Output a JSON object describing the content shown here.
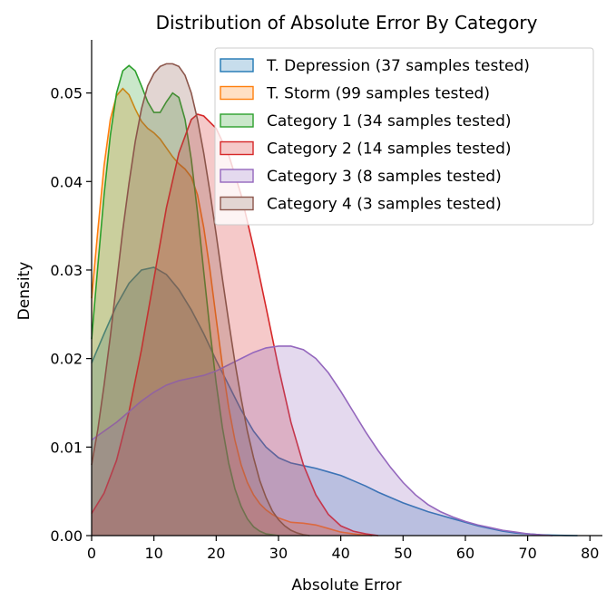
{
  "chart_data": {
    "type": "area",
    "title": "Distribution of Absolute Error By Category",
    "xlabel": "Absolute Error",
    "ylabel": "Density",
    "xlim": [
      0,
      82
    ],
    "ylim": [
      0,
      0.056
    ],
    "xticks": [
      0,
      10,
      20,
      30,
      40,
      50,
      60,
      70,
      80
    ],
    "yticks": [
      0.0,
      0.01,
      0.02,
      0.03,
      0.04,
      0.05
    ],
    "ytick_labels": [
      "0.00",
      "0.01",
      "0.02",
      "0.03",
      "0.04",
      "0.05"
    ],
    "grid": false,
    "legend_position": "top-right",
    "series": [
      {
        "name": "T. Depression (37 samples tested)",
        "color": "#1f77b4",
        "points": [
          [
            0,
            0.0195
          ],
          [
            2,
            0.0228
          ],
          [
            4,
            0.026
          ],
          [
            6,
            0.0285
          ],
          [
            8,
            0.03
          ],
          [
            10,
            0.0303
          ],
          [
            12,
            0.0295
          ],
          [
            14,
            0.0278
          ],
          [
            16,
            0.0255
          ],
          [
            18,
            0.0228
          ],
          [
            20,
            0.0198
          ],
          [
            22,
            0.017
          ],
          [
            24,
            0.0142
          ],
          [
            26,
            0.0118
          ],
          [
            28,
            0.01
          ],
          [
            30,
            0.0088
          ],
          [
            32,
            0.0082
          ],
          [
            34,
            0.0079
          ],
          [
            36,
            0.0076
          ],
          [
            38,
            0.0072
          ],
          [
            40,
            0.0068
          ],
          [
            42,
            0.0062
          ],
          [
            44,
            0.0056
          ],
          [
            46,
            0.0049
          ],
          [
            48,
            0.0043
          ],
          [
            50,
            0.0037
          ],
          [
            52,
            0.0032
          ],
          [
            54,
            0.0027
          ],
          [
            56,
            0.0023
          ],
          [
            58,
            0.0019
          ],
          [
            60,
            0.0015
          ],
          [
            62,
            0.0011
          ],
          [
            64,
            0.0008
          ],
          [
            66,
            0.0005
          ],
          [
            68,
            0.0003
          ],
          [
            70,
            0.0002
          ],
          [
            72,
            0.0001
          ],
          [
            74,
            5e-05
          ],
          [
            76,
            2e-05
          ],
          [
            78,
            0.0
          ]
        ]
      },
      {
        "name": "T. Storm (99 samples tested)",
        "color": "#ff7f0e",
        "points": [
          [
            0,
            0.0268
          ],
          [
            1,
            0.0345
          ],
          [
            2,
            0.0418
          ],
          [
            3,
            0.047
          ],
          [
            4,
            0.0497
          ],
          [
            5,
            0.0505
          ],
          [
            6,
            0.0498
          ],
          [
            7,
            0.0482
          ],
          [
            8,
            0.0468
          ],
          [
            9,
            0.046
          ],
          [
            10,
            0.0455
          ],
          [
            11,
            0.0448
          ],
          [
            12,
            0.0438
          ],
          [
            13,
            0.0428
          ],
          [
            14,
            0.042
          ],
          [
            15,
            0.0414
          ],
          [
            16,
            0.0405
          ],
          [
            17,
            0.0385
          ],
          [
            18,
            0.0348
          ],
          [
            19,
            0.03
          ],
          [
            20,
            0.0245
          ],
          [
            21,
            0.0192
          ],
          [
            22,
            0.0145
          ],
          [
            23,
            0.0108
          ],
          [
            24,
            0.008
          ],
          [
            25,
            0.006
          ],
          [
            26,
            0.0046
          ],
          [
            27,
            0.0036
          ],
          [
            28,
            0.0029
          ],
          [
            29,
            0.0024
          ],
          [
            30,
            0.002
          ],
          [
            32,
            0.0015
          ],
          [
            34,
            0.0014
          ],
          [
            36,
            0.0012
          ],
          [
            38,
            0.0008
          ],
          [
            40,
            0.0004
          ],
          [
            42,
            0.0002
          ],
          [
            44,
            5e-05
          ],
          [
            45,
            0.0
          ]
        ]
      },
      {
        "name": "Category 1 (34 samples tested)",
        "color": "#2ca02c",
        "points": [
          [
            0,
            0.0222
          ],
          [
            1,
            0.0305
          ],
          [
            2,
            0.0385
          ],
          [
            3,
            0.0452
          ],
          [
            4,
            0.05
          ],
          [
            5,
            0.0525
          ],
          [
            6,
            0.0531
          ],
          [
            7,
            0.0525
          ],
          [
            8,
            0.0508
          ],
          [
            9,
            0.049
          ],
          [
            10,
            0.0478
          ],
          [
            11,
            0.0478
          ],
          [
            12,
            0.049
          ],
          [
            13,
            0.05
          ],
          [
            14,
            0.0495
          ],
          [
            15,
            0.047
          ],
          [
            16,
            0.0425
          ],
          [
            17,
            0.0365
          ],
          [
            18,
            0.0298
          ],
          [
            19,
            0.0232
          ],
          [
            20,
            0.0172
          ],
          [
            21,
            0.0122
          ],
          [
            22,
            0.0082
          ],
          [
            23,
            0.0053
          ],
          [
            24,
            0.0033
          ],
          [
            25,
            0.0019
          ],
          [
            26,
            0.001
          ],
          [
            27,
            0.0005
          ],
          [
            28,
            0.0002
          ],
          [
            29,
            0.0001
          ],
          [
            30,
            0.0
          ]
        ]
      },
      {
        "name": "Category 2 (14 samples tested)",
        "color": "#d62728",
        "points": [
          [
            0,
            0.0025
          ],
          [
            2,
            0.0048
          ],
          [
            4,
            0.0085
          ],
          [
            6,
            0.014
          ],
          [
            8,
            0.021
          ],
          [
            10,
            0.029
          ],
          [
            12,
            0.037
          ],
          [
            14,
            0.0432
          ],
          [
            16,
            0.047
          ],
          [
            17,
            0.0476
          ],
          [
            18,
            0.0474
          ],
          [
            20,
            0.046
          ],
          [
            22,
            0.043
          ],
          [
            24,
            0.0385
          ],
          [
            26,
            0.0325
          ],
          [
            28,
            0.0258
          ],
          [
            30,
            0.019
          ],
          [
            32,
            0.0128
          ],
          [
            34,
            0.008
          ],
          [
            36,
            0.0046
          ],
          [
            38,
            0.0024
          ],
          [
            40,
            0.0011
          ],
          [
            42,
            0.0005
          ],
          [
            44,
            0.0002
          ],
          [
            46,
            0.0
          ]
        ]
      },
      {
        "name": "Category 3 (8 samples tested)",
        "color": "#9467bd",
        "points": [
          [
            0,
            0.0108
          ],
          [
            2,
            0.0118
          ],
          [
            4,
            0.0128
          ],
          [
            6,
            0.014
          ],
          [
            8,
            0.0152
          ],
          [
            10,
            0.0162
          ],
          [
            12,
            0.017
          ],
          [
            14,
            0.0175
          ],
          [
            16,
            0.0178
          ],
          [
            18,
            0.0181
          ],
          [
            20,
            0.0186
          ],
          [
            22,
            0.0193
          ],
          [
            24,
            0.02
          ],
          [
            26,
            0.0207
          ],
          [
            28,
            0.0212
          ],
          [
            30,
            0.0214
          ],
          [
            32,
            0.0214
          ],
          [
            34,
            0.021
          ],
          [
            36,
            0.02
          ],
          [
            38,
            0.0184
          ],
          [
            40,
            0.0163
          ],
          [
            42,
            0.014
          ],
          [
            44,
            0.0117
          ],
          [
            46,
            0.0096
          ],
          [
            48,
            0.0077
          ],
          [
            50,
            0.006
          ],
          [
            52,
            0.0046
          ],
          [
            54,
            0.0035
          ],
          [
            56,
            0.0027
          ],
          [
            58,
            0.0021
          ],
          [
            60,
            0.0016
          ],
          [
            62,
            0.0012
          ],
          [
            64,
            0.0009
          ],
          [
            66,
            0.0006
          ],
          [
            68,
            0.0004
          ],
          [
            70,
            0.0002
          ],
          [
            72,
            0.0001
          ],
          [
            74,
            0.0
          ]
        ]
      },
      {
        "name": "Category 4 (3 samples tested)",
        "color": "#8c564b",
        "points": [
          [
            0,
            0.008
          ],
          [
            1,
            0.012
          ],
          [
            2,
            0.017
          ],
          [
            3,
            0.0225
          ],
          [
            4,
            0.0285
          ],
          [
            5,
            0.0345
          ],
          [
            6,
            0.0398
          ],
          [
            7,
            0.0445
          ],
          [
            8,
            0.0482
          ],
          [
            9,
            0.0508
          ],
          [
            10,
            0.0522
          ],
          [
            11,
            0.053
          ],
          [
            12,
            0.0533
          ],
          [
            13,
            0.0533
          ],
          [
            14,
            0.053
          ],
          [
            15,
            0.052
          ],
          [
            16,
            0.05
          ],
          [
            17,
            0.047
          ],
          [
            18,
            0.0432
          ],
          [
            19,
            0.0388
          ],
          [
            20,
            0.034
          ],
          [
            21,
            0.029
          ],
          [
            22,
            0.0242
          ],
          [
            23,
            0.0196
          ],
          [
            24,
            0.0155
          ],
          [
            25,
            0.0118
          ],
          [
            26,
            0.0088
          ],
          [
            27,
            0.0062
          ],
          [
            28,
            0.0043
          ],
          [
            29,
            0.0028
          ],
          [
            30,
            0.0018
          ],
          [
            31,
            0.0011
          ],
          [
            32,
            0.0006
          ],
          [
            33,
            0.0003
          ],
          [
            34,
            0.0001
          ],
          [
            35,
            0.0
          ]
        ]
      }
    ]
  }
}
